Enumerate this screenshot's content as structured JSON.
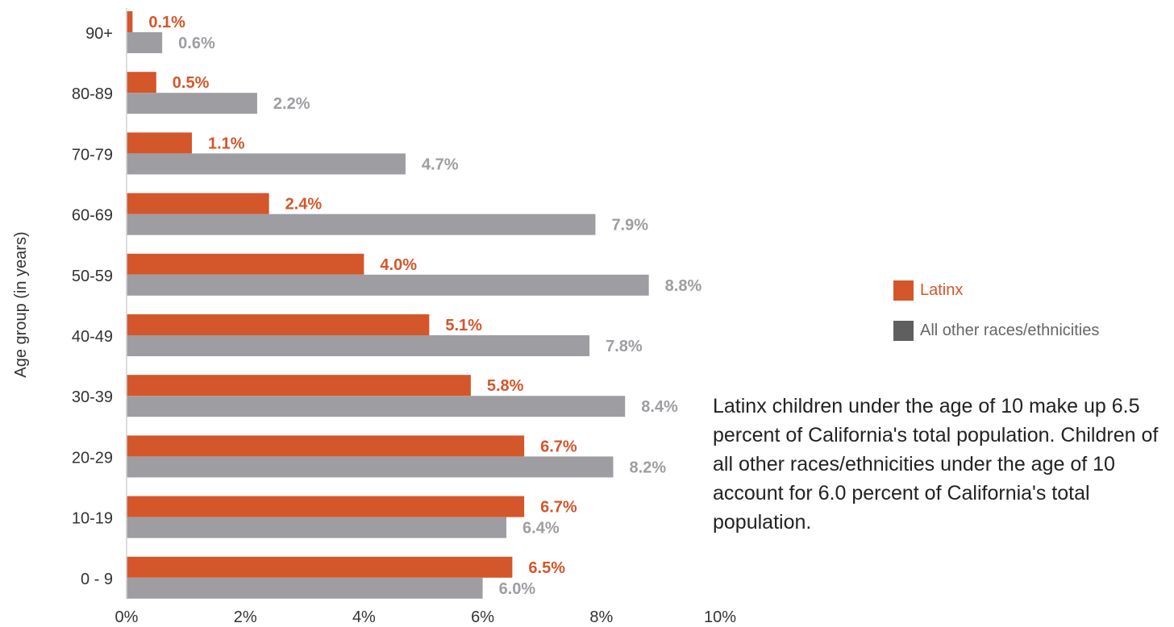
{
  "chart_data": {
    "type": "bar",
    "orientation": "horizontal",
    "ylabel": "Age group (in years)",
    "xlabel": "",
    "xlim": [
      0,
      10
    ],
    "x_ticks": [
      "0%",
      "2%",
      "4%",
      "6%",
      "8%",
      "10%"
    ],
    "categories": [
      "0 - 9",
      "10-19",
      "20-29",
      "30-39",
      "40-49",
      "50-59",
      "60-69",
      "70-79",
      "80-89",
      "90+"
    ],
    "series": [
      {
        "name": "Latinx",
        "color": "#d4562b",
        "values": [
          6.5,
          6.7,
          6.7,
          5.8,
          5.1,
          4.0,
          2.4,
          1.1,
          0.5,
          0.1
        ],
        "labels": [
          "6.5%",
          "6.7%",
          "6.7%",
          "5.8%",
          "5.1%",
          "4.0%",
          "2.4%",
          "1.1%",
          "0.5%",
          "0.1%"
        ]
      },
      {
        "name": "All other races/ethnicities",
        "color": "#9e9da2",
        "values": [
          6.0,
          6.4,
          8.2,
          8.4,
          7.8,
          8.8,
          7.9,
          4.7,
          2.2,
          0.6
        ],
        "labels": [
          "6.0%",
          "6.4%",
          "8.2%",
          "8.4%",
          "7.8%",
          "8.8%",
          "7.9%",
          "4.7%",
          "2.2%",
          "0.6%"
        ]
      }
    ],
    "legend": {
      "position": "right",
      "items": [
        {
          "label": "Latinx",
          "color": "#d4562b",
          "text_color": "#d4562b"
        },
        {
          "label": "All other races/ethnicities",
          "color": "#5f5f5f",
          "text_color": "#666666"
        }
      ]
    },
    "grid": false,
    "annotation": "Latinx children under the age of 10 make up 6.5 percent of California's total population. Children of all other races/ethnicities under the age of 10 account for 6.0 percent of California's total population."
  }
}
